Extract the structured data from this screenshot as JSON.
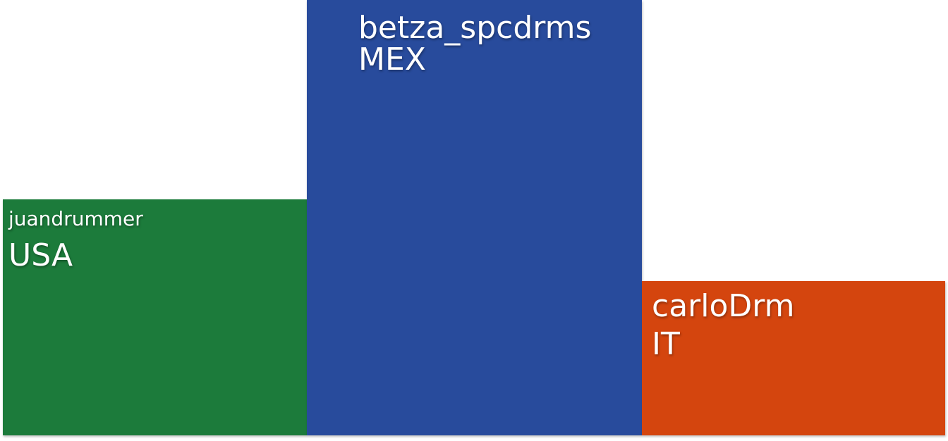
{
  "blocks": [
    {
      "username": "juandrummer",
      "country": "USA",
      "color": "#1c7b3b"
    },
    {
      "username": "betza_spcdrms",
      "country": "MEX",
      "color": "#284b9c"
    },
    {
      "username": "carloDrm",
      "country": "IT",
      "color": "#d4450e"
    }
  ]
}
